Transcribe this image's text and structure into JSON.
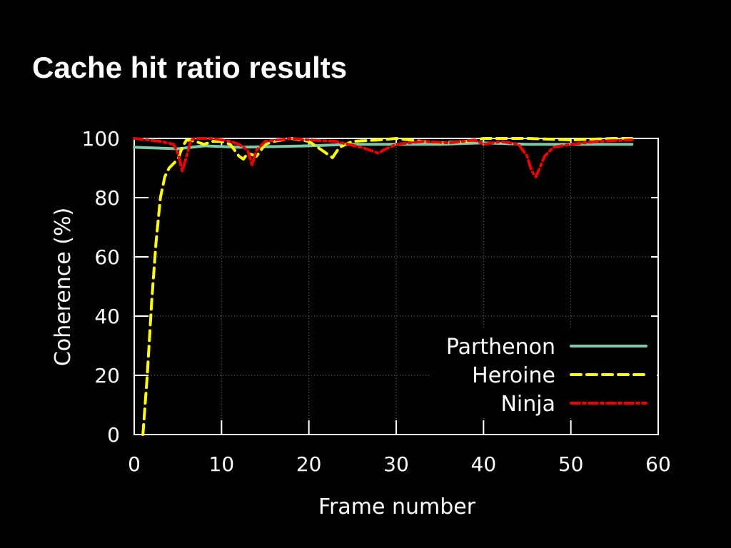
{
  "slide": {
    "title": "Cache hit ratio results"
  },
  "chart_data": {
    "type": "line",
    "title": "",
    "xlabel": "Frame number",
    "ylabel": "Coherence (%)",
    "xlim": [
      0,
      60
    ],
    "ylim": [
      0,
      100
    ],
    "x_ticks": [
      "0",
      "10",
      "20",
      "30",
      "40",
      "50",
      "60"
    ],
    "y_ticks": [
      "0",
      "20",
      "40",
      "60",
      "80",
      "100"
    ],
    "grid": true,
    "legend": "bottom-right",
    "series": [
      {
        "name": "Parthenon",
        "color": "#7fc8a8",
        "style": "solid",
        "x": [
          0,
          5,
          8,
          12,
          20,
          25,
          30,
          35,
          40,
          45,
          50,
          57
        ],
        "y": [
          97,
          96.5,
          97.5,
          97,
          97.5,
          98,
          98,
          98,
          98.5,
          98,
          98,
          98
        ]
      },
      {
        "name": "Heroine",
        "color": "#ffff00",
        "style": "dashed",
        "x": [
          1,
          1.5,
          2,
          2.5,
          3,
          3.5,
          4,
          5,
          5.5,
          6,
          7,
          8,
          9,
          10,
          11,
          12,
          12.5,
          13,
          14,
          15,
          16,
          18,
          20,
          21,
          22,
          22.7,
          23.5,
          25,
          28,
          30,
          33,
          35,
          38,
          40,
          45,
          50,
          55,
          57
        ],
        "y": [
          0,
          20,
          45,
          65,
          80,
          87,
          90,
          93,
          97,
          99.5,
          99,
          98,
          99,
          99,
          98,
          94,
          93,
          95,
          94,
          98,
          99,
          100,
          99,
          97,
          95,
          93.5,
          97,
          99,
          99.5,
          100,
          99,
          98.5,
          99,
          100,
          100,
          99.5,
          100,
          100
        ]
      },
      {
        "name": "Ninja",
        "color": "#ee0000",
        "style": "dash-dot",
        "x": [
          0,
          3,
          4.5,
          5,
          5.5,
          6,
          6.5,
          7,
          9,
          11,
          12,
          13,
          13.5,
          14,
          15,
          18,
          20,
          23,
          26,
          28,
          28.5,
          30,
          33,
          36,
          39,
          40,
          42,
          44,
          45,
          45.5,
          46,
          47,
          48,
          50,
          53,
          57
        ],
        "y": [
          100,
          99,
          98,
          95,
          89,
          94,
          99.5,
          100,
          100,
          99,
          98,
          96,
          91,
          96,
          99,
          100,
          99.5,
          99,
          97,
          95,
          96,
          98,
          99,
          98.5,
          99.5,
          98,
          99,
          98,
          94,
          89,
          87,
          94,
          97,
          98,
          99,
          99.5
        ]
      }
    ]
  }
}
